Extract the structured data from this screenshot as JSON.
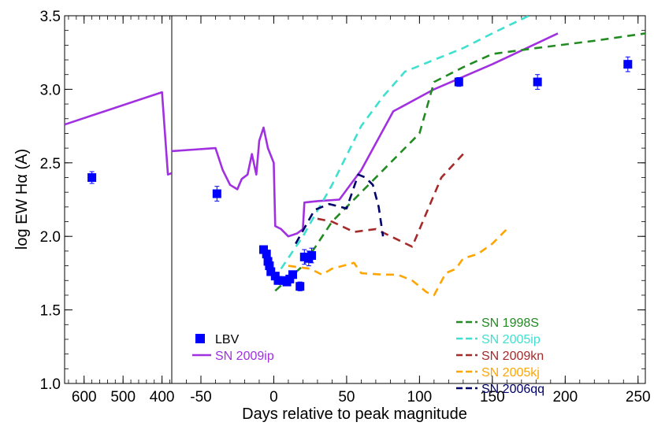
{
  "chart_data": {
    "type": "line",
    "xlabel": "Days relative to peak magnitude",
    "ylabel": "log EW Hα (A)",
    "ylim": [
      1.0,
      3.5
    ],
    "panels": [
      {
        "name": "left",
        "xlim": [
          650,
          375
        ],
        "xticks": [
          600,
          500,
          400
        ],
        "tick_labels": [
          "600",
          "500",
          "400"
        ]
      },
      {
        "name": "right",
        "xlim": [
          -70,
          255
        ],
        "xticks": [
          -50,
          0,
          50,
          100,
          150,
          200,
          250
        ],
        "tick_labels": [
          "-50",
          "0",
          "50",
          "100",
          "150",
          "200",
          "250"
        ]
      }
    ],
    "yticks": [
      1.0,
      1.5,
      2.0,
      2.5,
      3.0,
      3.5
    ],
    "ytick_labels": [
      "1.0",
      "1.5",
      "2.0",
      "2.5",
      "3.0",
      "3.5"
    ],
    "series": [
      {
        "name": "LBV",
        "kind": "points",
        "color": "#0000ff",
        "points": [
          {
            "panel": "left",
            "x": 580,
            "y": 2.4,
            "err": 0.04
          },
          {
            "panel": "right",
            "x": -39,
            "y": 2.29,
            "err": 0.05
          },
          {
            "panel": "right",
            "x": -7,
            "y": 1.91,
            "err": 0.02
          },
          {
            "panel": "right",
            "x": -5,
            "y": 1.88,
            "err": 0.02
          },
          {
            "panel": "right",
            "x": -4,
            "y": 1.83,
            "err": 0.02
          },
          {
            "panel": "right",
            "x": -3,
            "y": 1.8,
            "err": 0.02
          },
          {
            "panel": "right",
            "x": -2,
            "y": 1.76,
            "err": 0.02
          },
          {
            "panel": "right",
            "x": 1,
            "y": 1.73,
            "err": 0.02
          },
          {
            "panel": "right",
            "x": 3,
            "y": 1.7,
            "err": 0.02
          },
          {
            "panel": "right",
            "x": 6,
            "y": 1.7,
            "err": 0.02
          },
          {
            "panel": "right",
            "x": 9,
            "y": 1.69,
            "err": 0.02
          },
          {
            "panel": "right",
            "x": 11,
            "y": 1.71,
            "err": 0.02
          },
          {
            "panel": "right",
            "x": 13,
            "y": 1.74,
            "err": 0.02
          },
          {
            "panel": "right",
            "x": 18,
            "y": 1.66,
            "err": 0.03
          },
          {
            "panel": "right",
            "x": 21,
            "y": 1.86,
            "err": 0.05
          },
          {
            "panel": "right",
            "x": 24,
            "y": 1.85,
            "err": 0.05
          },
          {
            "panel": "right",
            "x": 26,
            "y": 1.87,
            "err": 0.05
          },
          {
            "panel": "right",
            "x": 127,
            "y": 3.05,
            "err": 0.03
          },
          {
            "panel": "right",
            "x": 181,
            "y": 3.05,
            "err": 0.05
          },
          {
            "panel": "right",
            "x": 243,
            "y": 3.17,
            "err": 0.05
          }
        ]
      },
      {
        "name": "SN 2009ip",
        "kind": "solid",
        "color": "#a030e0",
        "segments": [
          {
            "panel": "left",
            "points": [
              [
                650,
                2.76
              ],
              [
                400,
                2.98
              ],
              [
                385,
                2.42
              ],
              [
                375,
                2.43
              ]
            ]
          },
          {
            "panel": "right",
            "points": [
              [
                -70,
                2.58
              ],
              [
                -40,
                2.6
              ],
              [
                -35,
                2.45
              ],
              [
                -30,
                2.35
              ],
              [
                -25,
                2.32
              ],
              [
                -22,
                2.39
              ],
              [
                -18,
                2.42
              ],
              [
                -15,
                2.56
              ],
              [
                -12,
                2.42
              ],
              [
                -10,
                2.65
              ],
              [
                -7,
                2.74
              ],
              [
                -4,
                2.6
              ],
              [
                0,
                2.5
              ],
              [
                1,
                2.07
              ],
              [
                5,
                2.05
              ],
              [
                10,
                2.0
              ],
              [
                16,
                2.02
              ],
              [
                20,
                2.05
              ],
              [
                21,
                2.23
              ],
              [
                30,
                2.24
              ],
              [
                45,
                2.25
              ],
              [
                60,
                2.45
              ],
              [
                82,
                2.85
              ],
              [
                110,
                3.0
              ],
              [
                150,
                3.17
              ],
              [
                195,
                3.38
              ]
            ]
          }
        ]
      },
      {
        "name": "SN 1998S",
        "kind": "dashed",
        "color": "#228b22",
        "panel": "right",
        "points": [
          [
            1,
            1.63
          ],
          [
            20,
            1.8
          ],
          [
            40,
            2.1
          ],
          [
            60,
            2.3
          ],
          [
            80,
            2.5
          ],
          [
            100,
            2.7
          ],
          [
            110,
            3.05
          ],
          [
            130,
            3.15
          ],
          [
            150,
            3.24
          ],
          [
            180,
            3.28
          ],
          [
            220,
            3.33
          ],
          [
            255,
            3.38
          ]
        ]
      },
      {
        "name": "SN 2005ip",
        "kind": "dashed",
        "color": "#40e0d0",
        "panel": "right",
        "points": [
          [
            5,
            1.78
          ],
          [
            20,
            2.0
          ],
          [
            40,
            2.35
          ],
          [
            60,
            2.75
          ],
          [
            75,
            2.95
          ],
          [
            90,
            3.12
          ],
          [
            110,
            3.2
          ],
          [
            130,
            3.28
          ],
          [
            150,
            3.38
          ],
          [
            175,
            3.5
          ]
        ]
      },
      {
        "name": "SN 2009kn",
        "kind": "dashed",
        "color": "#a52a2a",
        "panel": "right",
        "points": [
          [
            30,
            2.12
          ],
          [
            40,
            2.1
          ],
          [
            55,
            2.03
          ],
          [
            70,
            2.05
          ],
          [
            95,
            1.93
          ],
          [
            115,
            2.4
          ],
          [
            130,
            2.56
          ]
        ]
      },
      {
        "name": "SN 2005kj",
        "kind": "dashed",
        "color": "#ffa500",
        "panel": "right",
        "points": [
          [
            10,
            1.8
          ],
          [
            25,
            1.78
          ],
          [
            33,
            1.74
          ],
          [
            40,
            1.78
          ],
          [
            55,
            1.82
          ],
          [
            60,
            1.75
          ],
          [
            75,
            1.74
          ],
          [
            85,
            1.74
          ],
          [
            95,
            1.7
          ],
          [
            105,
            1.62
          ],
          [
            110,
            1.6
          ],
          [
            118,
            1.75
          ],
          [
            125,
            1.78
          ],
          [
            130,
            1.85
          ],
          [
            140,
            1.88
          ],
          [
            150,
            1.95
          ],
          [
            160,
            2.05
          ]
        ]
      },
      {
        "name": "SN 2006qq",
        "kind": "dashed",
        "color": "#00006b",
        "panel": "right",
        "points": [
          [
            15,
            1.95
          ],
          [
            28,
            2.18
          ],
          [
            38,
            2.22
          ],
          [
            50,
            2.19
          ],
          [
            58,
            2.42
          ],
          [
            63,
            2.4
          ],
          [
            68,
            2.35
          ],
          [
            72,
            2.2
          ],
          [
            75,
            2.0
          ]
        ]
      }
    ],
    "legend_left": [
      "LBV",
      "SN 2009ip"
    ],
    "legend_right": [
      "SN 1998S",
      "SN 2005ip",
      "SN 2009kn",
      "SN 2005kj",
      "SN 2006qq"
    ],
    "legend_placement": [
      "bottom-left",
      "bottom-right"
    ]
  }
}
